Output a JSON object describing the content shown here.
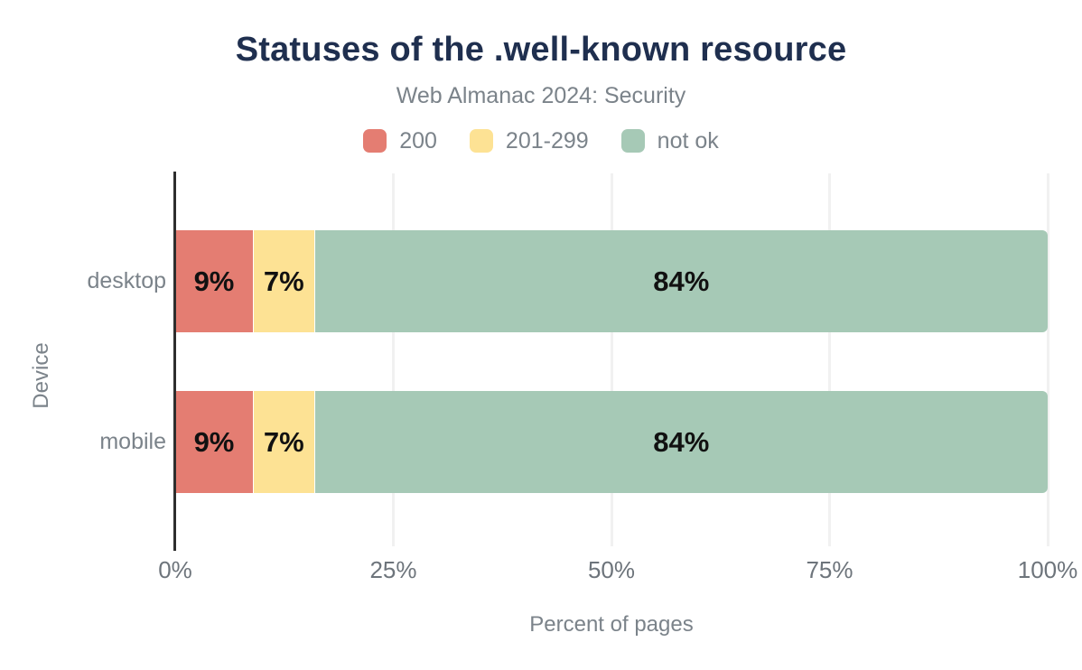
{
  "chart_data": {
    "type": "bar",
    "orientation": "horizontal",
    "stacked": true,
    "title": "Statuses of the .well-known resource",
    "subtitle": "Web Almanac 2024: Security",
    "xlabel": "Percent of pages",
    "ylabel": "Device",
    "xlim": [
      0,
      100
    ],
    "grid": "vertical",
    "legend_position": "top",
    "categories": [
      "desktop",
      "mobile"
    ],
    "series": [
      {
        "name": "200",
        "color": "#e47d72",
        "values": [
          9,
          9
        ],
        "labels": [
          "9%",
          "9%"
        ]
      },
      {
        "name": "201-299",
        "color": "#fde294",
        "values": [
          7,
          7
        ],
        "labels": [
          "7%",
          "7%"
        ]
      },
      {
        "name": "not ok",
        "color": "#a6c9b6",
        "values": [
          84,
          84
        ],
        "labels": [
          "84%",
          "84%"
        ]
      }
    ],
    "xticks": [
      {
        "label": "0%",
        "value": 0
      },
      {
        "label": "25%",
        "value": 25
      },
      {
        "label": "50%",
        "value": 50
      },
      {
        "label": "75%",
        "value": 75
      },
      {
        "label": "100%",
        "value": 100
      }
    ]
  },
  "colors": {
    "title": "#1f2f4f",
    "subtitle": "#7b838a",
    "axis_text": "#6d747b",
    "bar_label": "#111111",
    "axis_line": "#2e2e2e",
    "gridline": "#f1f1f1",
    "background": "#ffffff"
  }
}
